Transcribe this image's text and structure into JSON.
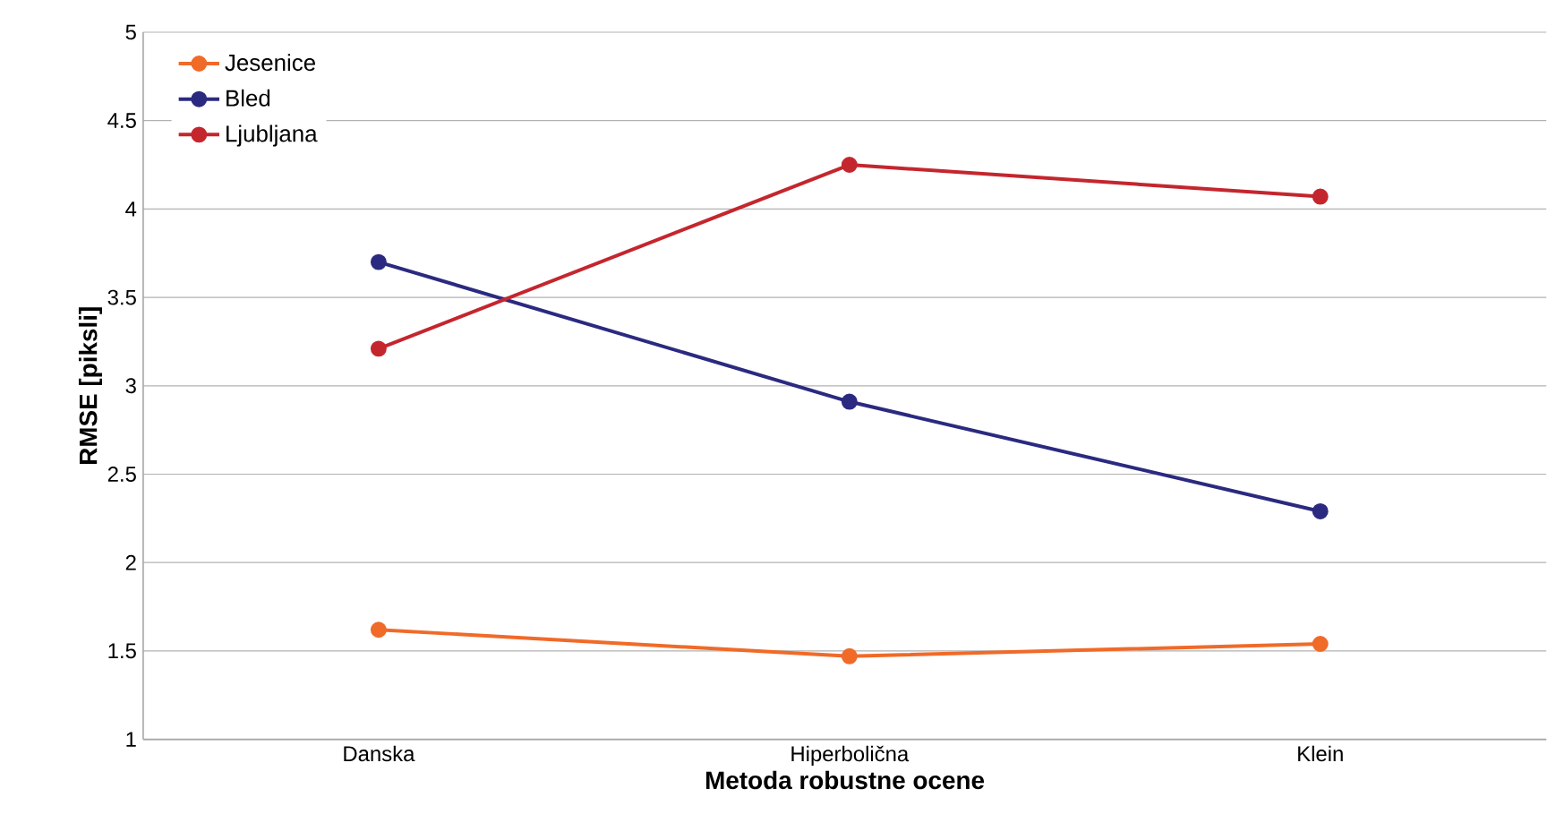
{
  "chart_data": {
    "type": "line",
    "xlabel": "Metoda robustne ocene",
    "ylabel": "RMSE  [piksli]",
    "categories": [
      "Danska",
      "Hiperbolična",
      "Klein"
    ],
    "series": [
      {
        "name": "Jesenice",
        "color": "#f06a28",
        "values": [
          1.62,
          1.47,
          1.54
        ]
      },
      {
        "name": "Bled",
        "color": "#2b2a80",
        "values": [
          3.7,
          2.91,
          2.29
        ]
      },
      {
        "name": "Ljubljana",
        "color": "#c4262e",
        "values": [
          3.21,
          4.25,
          4.07
        ]
      }
    ],
    "ylim": [
      1,
      5
    ],
    "yticks": [
      1,
      1.5,
      2,
      2.5,
      3,
      3.5,
      4,
      4.5,
      5
    ],
    "grid": "y",
    "legend": "top left",
    "marker": "circle",
    "line_style": "solid"
  }
}
